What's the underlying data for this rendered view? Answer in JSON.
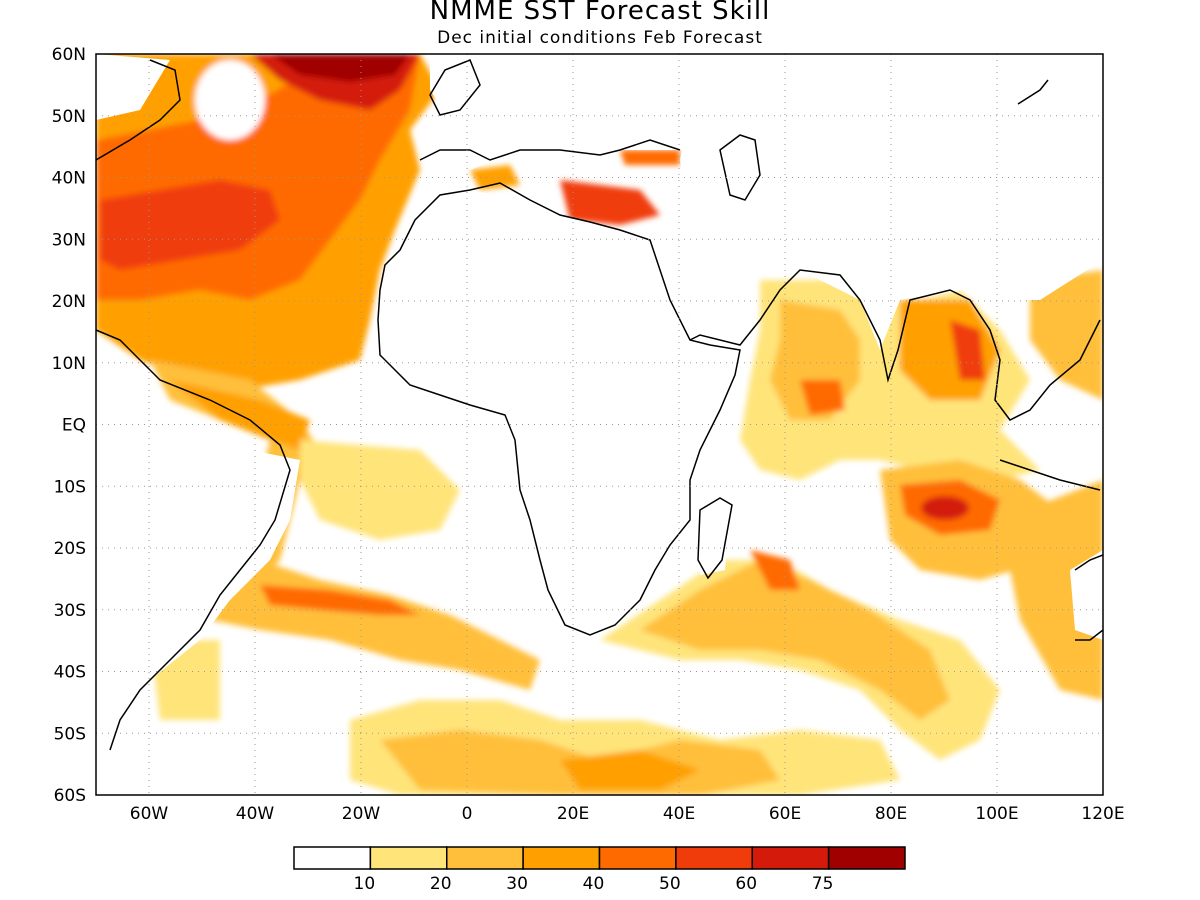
{
  "title": "NMME SST Forecast Skill",
  "subtitle": "Dec initial conditions  Feb Forecast",
  "map": {
    "lat_labels": [
      "60N",
      "50N",
      "40N",
      "30N",
      "20N",
      "10N",
      "EQ",
      "10S",
      "20S",
      "30S",
      "40S",
      "50S",
      "60S"
    ],
    "lon_labels": [
      "60W",
      "40W",
      "20W",
      "0",
      "20E",
      "40E",
      "60E",
      "80E",
      "100E",
      "120E"
    ],
    "lon_range": [
      -70,
      120
    ],
    "lat_range": [
      -60,
      60
    ],
    "grid": "dotted"
  },
  "colorbar": {
    "colors": [
      "#ffffff",
      "#ffe47a",
      "#ffbf3a",
      "#ffa000",
      "#ff6a00",
      "#f03c0a",
      "#d41a0a",
      "#a00000"
    ],
    "tick_labels": [
      "10",
      "20",
      "30",
      "40",
      "50",
      "60",
      "75"
    ]
  }
}
